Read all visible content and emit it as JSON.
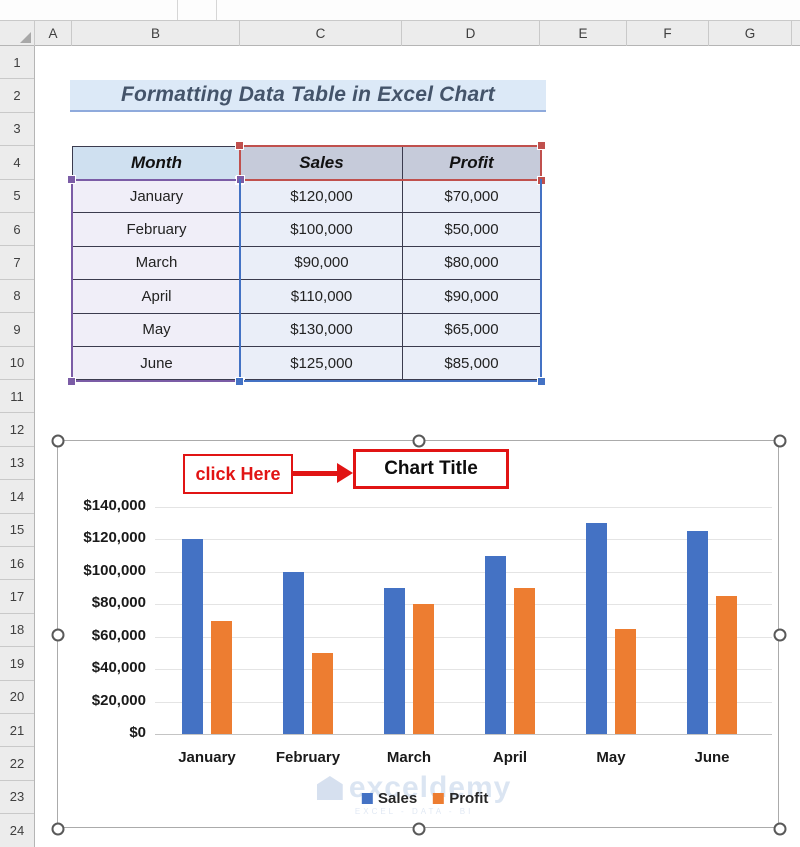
{
  "spreadsheet": {
    "column_headers": [
      "A",
      "B",
      "C",
      "D",
      "E",
      "F",
      "G"
    ],
    "row_headers": [
      "1",
      "2",
      "3",
      "4",
      "5",
      "6",
      "7",
      "8",
      "9",
      "10",
      "11",
      "12",
      "13",
      "14",
      "15",
      "16",
      "17",
      "18",
      "19",
      "20",
      "21",
      "22",
      "23",
      "24"
    ],
    "title": "Formatting Data Table in Excel Chart"
  },
  "table": {
    "columns": [
      "Month",
      "Sales",
      "Profit"
    ],
    "rows": [
      [
        "January",
        "$120,000",
        "$70,000"
      ],
      [
        "February",
        "$100,000",
        "$50,000"
      ],
      [
        "March",
        "$90,000",
        "$80,000"
      ],
      [
        "April",
        "$110,000",
        "$90,000"
      ],
      [
        "May",
        "$130,000",
        "$65,000"
      ],
      [
        "June",
        "$125,000",
        "$85,000"
      ]
    ]
  },
  "annotations": {
    "click_here_label": "click Here",
    "chart_title_label": "Chart Title"
  },
  "chart_data": {
    "type": "bar",
    "title": "Chart Title",
    "categories": [
      "January",
      "February",
      "March",
      "April",
      "May",
      "June"
    ],
    "series": [
      {
        "name": "Sales",
        "color": "#4472C4",
        "values": [
          120000,
          100000,
          90000,
          110000,
          130000,
          125000
        ]
      },
      {
        "name": "Profit",
        "color": "#ED7D31",
        "values": [
          70000,
          50000,
          80000,
          90000,
          65000,
          85000
        ]
      }
    ],
    "y_ticks": [
      "$140,000",
      "$120,000",
      "$100,000",
      "$80,000",
      "$60,000",
      "$40,000",
      "$20,000",
      "$0"
    ],
    "y_tick_values": [
      140000,
      120000,
      100000,
      80000,
      60000,
      40000,
      20000,
      0
    ],
    "ylim": [
      0,
      140000
    ],
    "xlabel": "",
    "ylabel": "",
    "grid": true,
    "legend_position": "bottom"
  },
  "watermark": {
    "text": "exceldemy",
    "subtext": "EXCEL - DATA - BI"
  },
  "colors": {
    "sales": "#4472C4",
    "profit": "#ED7D31",
    "selection_categories": "#7B5CA6",
    "selection_series_names": "#C0504D",
    "selection_values": "#4472C4",
    "annotation_red": "#E11414",
    "title_text": "#44546A",
    "title_bg": "#DCE9F7"
  }
}
